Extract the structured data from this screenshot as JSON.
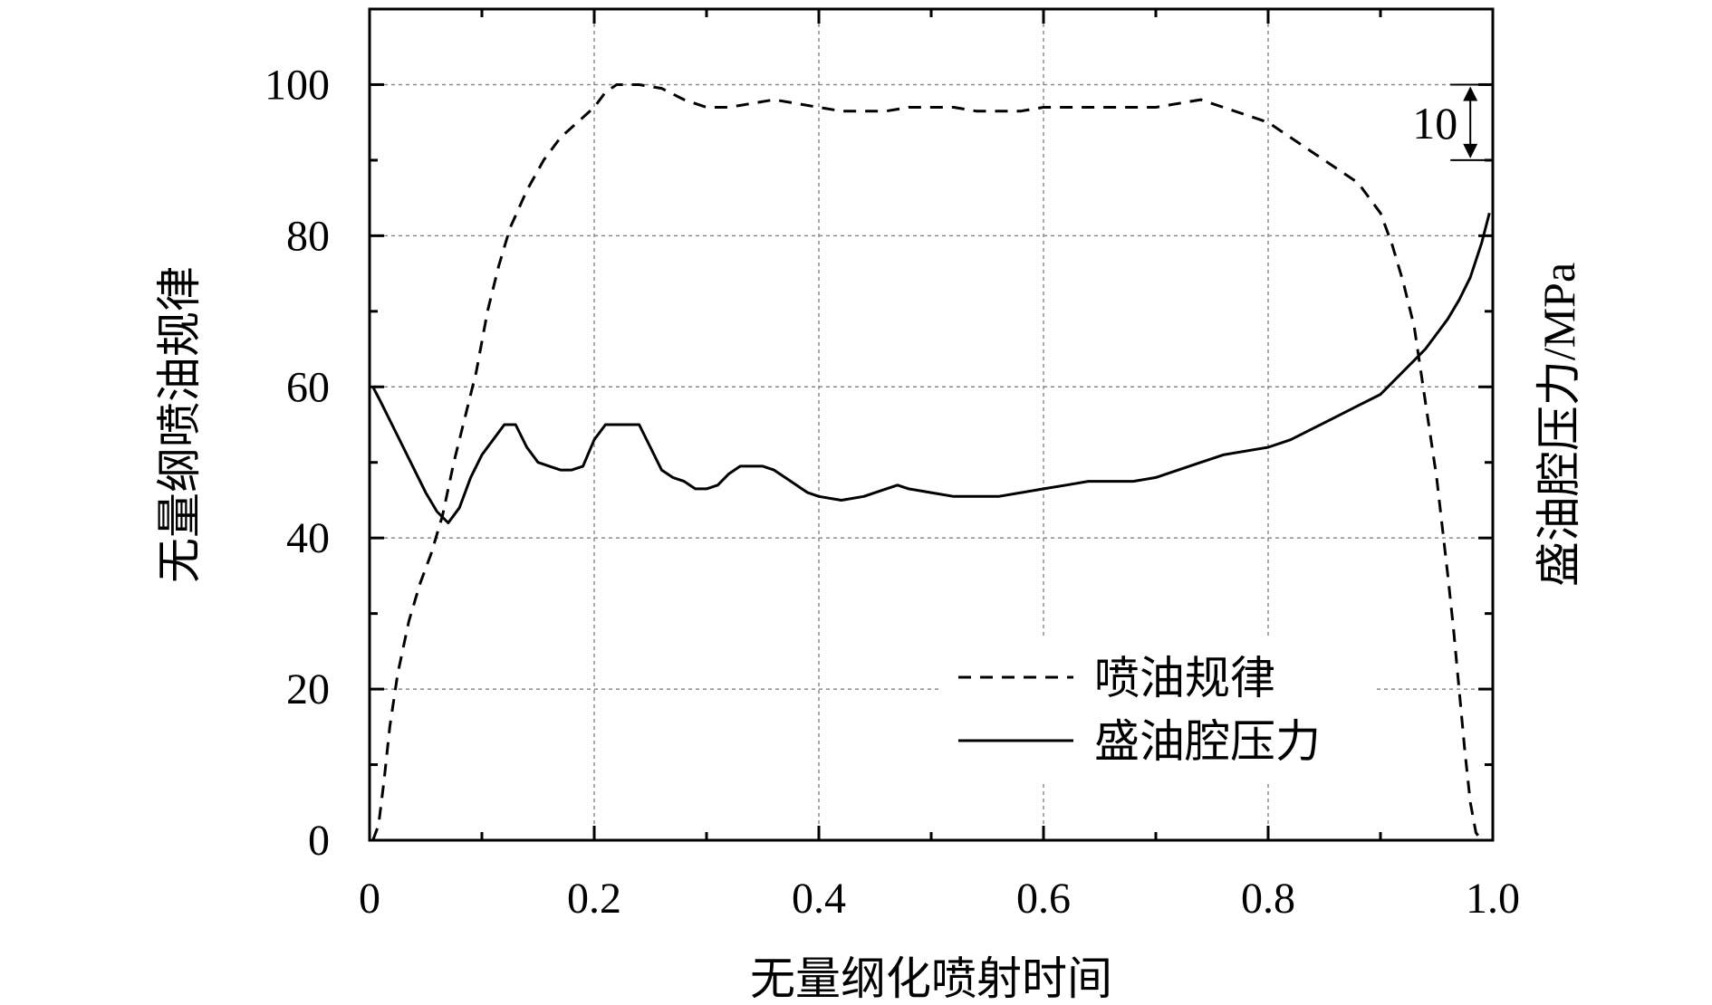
{
  "chart_data": {
    "type": "line",
    "title": "",
    "xlabel": "无量纲化喷射时间",
    "ylabel": "无量纲喷油规律",
    "y2label": "盛油腔压力/MPa",
    "xlim": [
      0,
      1.0
    ],
    "ylim": [
      0,
      110
    ],
    "x_ticks": [
      0,
      0.2,
      0.4,
      0.6,
      0.8,
      1.0
    ],
    "x_tick_labels": [
      "0",
      "0.2",
      "0.4",
      "0.6",
      "0.8",
      "1.0"
    ],
    "y_ticks": [
      0,
      20,
      40,
      60,
      80,
      100
    ],
    "y_tick_labels": [
      "0",
      "20",
      "40",
      "60",
      "80",
      "100"
    ],
    "grid": true,
    "legend_position": "lower-right",
    "annotation": {
      "label": "10",
      "x": 0.98,
      "y_from": 90,
      "y_to": 100
    },
    "series": [
      {
        "name": "喷油规律",
        "style": "dashed",
        "color": "#000000",
        "x": [
          0.003,
          0.008,
          0.013,
          0.018,
          0.025,
          0.035,
          0.045,
          0.055,
          0.065,
          0.075,
          0.085,
          0.095,
          0.105,
          0.115,
          0.125,
          0.14,
          0.155,
          0.17,
          0.185,
          0.2,
          0.21,
          0.22,
          0.24,
          0.26,
          0.28,
          0.3,
          0.32,
          0.34,
          0.36,
          0.38,
          0.4,
          0.42,
          0.44,
          0.46,
          0.48,
          0.5,
          0.52,
          0.54,
          0.56,
          0.58,
          0.6,
          0.62,
          0.64,
          0.66,
          0.68,
          0.7,
          0.72,
          0.74,
          0.76,
          0.78,
          0.8,
          0.82,
          0.84,
          0.86,
          0.88,
          0.9,
          0.91,
          0.92,
          0.93,
          0.94,
          0.95,
          0.96,
          0.965,
          0.97,
          0.975,
          0.98,
          0.985,
          0.99,
          0.993
        ],
        "y": [
          0,
          2,
          8,
          15,
          22,
          29,
          34,
          38,
          43,
          50,
          56,
          62,
          70,
          76,
          81,
          86,
          90,
          93,
          95,
          97,
          99,
          100,
          100,
          99.5,
          98,
          97,
          97,
          97.5,
          98,
          97.5,
          97,
          96.5,
          96.5,
          96.5,
          97,
          97,
          97,
          96.5,
          96.5,
          96.5,
          97,
          97,
          97,
          97,
          97,
          97,
          97.5,
          98,
          97,
          96,
          95,
          93,
          91,
          89,
          87,
          83,
          79,
          74,
          68,
          58,
          48,
          35,
          28,
          20,
          12,
          5,
          1,
          0,
          0
        ]
      },
      {
        "name": "盛油腔压力",
        "style": "solid",
        "color": "#000000",
        "x": [
          0.003,
          0.01,
          0.02,
          0.03,
          0.04,
          0.05,
          0.06,
          0.07,
          0.08,
          0.09,
          0.1,
          0.11,
          0.12,
          0.13,
          0.14,
          0.15,
          0.16,
          0.17,
          0.18,
          0.19,
          0.2,
          0.21,
          0.22,
          0.23,
          0.24,
          0.25,
          0.26,
          0.27,
          0.28,
          0.29,
          0.3,
          0.31,
          0.32,
          0.33,
          0.34,
          0.35,
          0.36,
          0.37,
          0.38,
          0.39,
          0.4,
          0.42,
          0.44,
          0.46,
          0.47,
          0.48,
          0.5,
          0.52,
          0.54,
          0.56,
          0.58,
          0.6,
          0.62,
          0.64,
          0.66,
          0.68,
          0.7,
          0.72,
          0.74,
          0.76,
          0.78,
          0.8,
          0.82,
          0.84,
          0.86,
          0.88,
          0.9,
          0.91,
          0.92,
          0.93,
          0.94,
          0.95,
          0.96,
          0.97,
          0.98,
          0.99,
          0.997
        ],
        "y": [
          60,
          58,
          55,
          52,
          49,
          46,
          43.5,
          42,
          44,
          48,
          51,
          53,
          55,
          55,
          52,
          50,
          49.5,
          49,
          49,
          49.5,
          53,
          55,
          55,
          55,
          55,
          52,
          49,
          48,
          47.5,
          46.5,
          46.5,
          47,
          48.5,
          49.5,
          49.5,
          49.5,
          49,
          48,
          47,
          46,
          45.5,
          45,
          45.5,
          46.5,
          47,
          46.5,
          46,
          45.5,
          45.5,
          45.5,
          46,
          46.5,
          47,
          47.5,
          47.5,
          47.5,
          48,
          49,
          50,
          51,
          51.5,
          52,
          53,
          54.5,
          56,
          57.5,
          59,
          60.5,
          62,
          63.5,
          65,
          67,
          69,
          71.5,
          74.5,
          79,
          83
        ]
      }
    ]
  }
}
